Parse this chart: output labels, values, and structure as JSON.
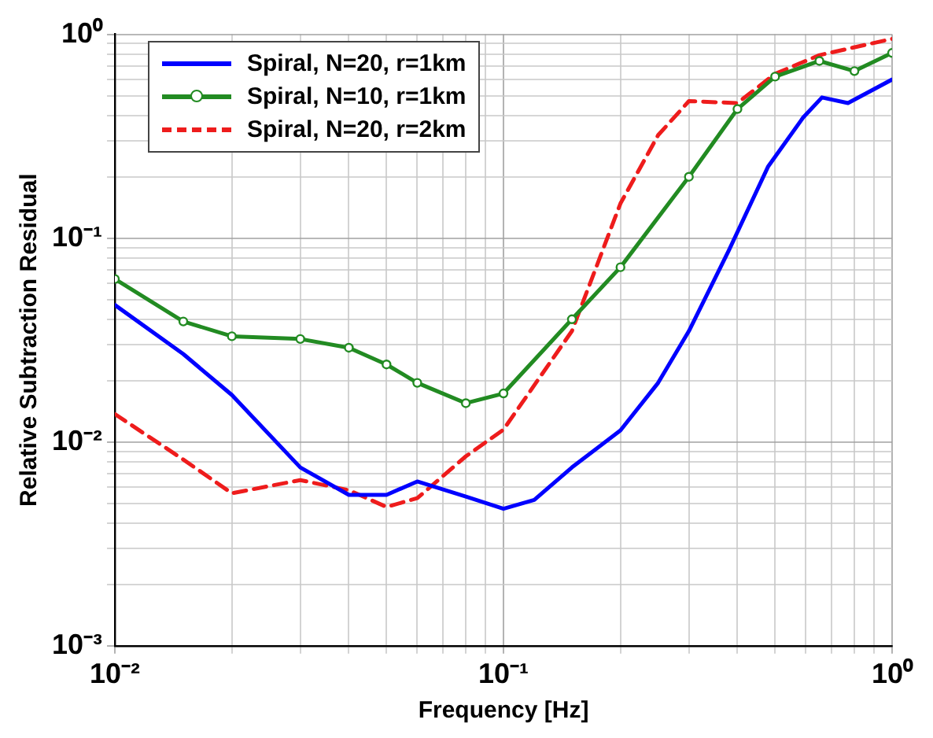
{
  "chart_data": {
    "type": "line",
    "xlabel": "Frequency [Hz]",
    "ylabel": "Relative Subtraction Residual",
    "log": "xy",
    "grid": true,
    "legend": "top left",
    "xlim": [
      0.01,
      1
    ],
    "ylim": [
      0.001,
      1
    ],
    "xticks": [
      {
        "value": 0.01,
        "label": "10⁻²"
      },
      {
        "value": 0.02,
        "label": null
      },
      {
        "value": 0.03,
        "label": null
      },
      {
        "value": 0.04,
        "label": null
      },
      {
        "value": 0.05,
        "label": null
      },
      {
        "value": 0.06,
        "label": null
      },
      {
        "value": 0.07,
        "label": null
      },
      {
        "value": 0.08,
        "label": null
      },
      {
        "value": 0.09,
        "label": null
      },
      {
        "value": 0.1,
        "label": "10⁻¹"
      },
      {
        "value": 0.2,
        "label": null
      },
      {
        "value": 0.3,
        "label": null
      },
      {
        "value": 0.4,
        "label": null
      },
      {
        "value": 0.5,
        "label": null
      },
      {
        "value": 0.6,
        "label": null
      },
      {
        "value": 0.7,
        "label": null
      },
      {
        "value": 0.8,
        "label": null
      },
      {
        "value": 0.9,
        "label": null
      },
      {
        "value": 1,
        "label": "10⁰"
      }
    ],
    "yticks": [
      {
        "value": 0.001,
        "label": "10⁻³"
      },
      {
        "value": 0.002,
        "label": null
      },
      {
        "value": 0.003,
        "label": null
      },
      {
        "value": 0.004,
        "label": null
      },
      {
        "value": 0.005,
        "label": null
      },
      {
        "value": 0.006,
        "label": null
      },
      {
        "value": 0.007,
        "label": null
      },
      {
        "value": 0.008,
        "label": null
      },
      {
        "value": 0.009,
        "label": null
      },
      {
        "value": 0.01,
        "label": "10⁻²"
      },
      {
        "value": 0.02,
        "label": null
      },
      {
        "value": 0.03,
        "label": null
      },
      {
        "value": 0.04,
        "label": null
      },
      {
        "value": 0.05,
        "label": null
      },
      {
        "value": 0.06,
        "label": null
      },
      {
        "value": 0.07,
        "label": null
      },
      {
        "value": 0.08,
        "label": null
      },
      {
        "value": 0.09,
        "label": null
      },
      {
        "value": 0.1,
        "label": "10⁻¹"
      },
      {
        "value": 0.2,
        "label": null
      },
      {
        "value": 0.3,
        "label": null
      },
      {
        "value": 0.4,
        "label": null
      },
      {
        "value": 0.5,
        "label": null
      },
      {
        "value": 0.6,
        "label": null
      },
      {
        "value": 0.7,
        "label": null
      },
      {
        "value": 0.8,
        "label": null
      },
      {
        "value": 0.9,
        "label": null
      },
      {
        "value": 1,
        "label": "10⁰"
      }
    ],
    "series": [
      {
        "name": "Spiral, N=20, r=1km",
        "color": "#0000ff",
        "line_style": "solid",
        "marker": "none",
        "x": [
          0.01,
          0.015,
          0.02,
          0.03,
          0.04,
          0.05,
          0.06,
          0.08,
          0.1,
          0.12,
          0.15,
          0.2,
          0.25,
          0.3,
          0.38,
          0.48,
          0.59,
          0.66,
          0.77,
          1
        ],
        "values": [
          0.047,
          0.027,
          0.017,
          0.0075,
          0.0055,
          0.0055,
          0.0064,
          0.0054,
          0.0047,
          0.0052,
          0.0075,
          0.0114,
          0.0195,
          0.035,
          0.087,
          0.225,
          0.39,
          0.49,
          0.46,
          0.6
        ]
      },
      {
        "name": "Spiral, N=10, r=1km",
        "color": "#228b22",
        "line_style": "solid",
        "marker": "circle",
        "x": [
          0.01,
          0.015,
          0.02,
          0.03,
          0.04,
          0.05,
          0.06,
          0.08,
          0.1,
          0.15,
          0.2,
          0.3,
          0.4,
          0.5,
          0.65,
          0.8,
          1
        ],
        "values": [
          0.063,
          0.039,
          0.033,
          0.032,
          0.029,
          0.024,
          0.0195,
          0.0155,
          0.0173,
          0.04,
          0.072,
          0.2,
          0.43,
          0.62,
          0.74,
          0.66,
          0.81
        ]
      },
      {
        "name": "Spiral, N=20, r=2km",
        "color": "#ee1c1c",
        "line_style": "dashed",
        "marker": "none",
        "x": [
          0.01,
          0.015,
          0.02,
          0.03,
          0.04,
          0.05,
          0.06,
          0.08,
          0.1,
          0.15,
          0.2,
          0.25,
          0.3,
          0.4,
          0.5,
          0.65,
          1
        ],
        "values": [
          0.0137,
          0.0082,
          0.0056,
          0.0065,
          0.0058,
          0.0048,
          0.0053,
          0.0085,
          0.0115,
          0.035,
          0.148,
          0.32,
          0.47,
          0.46,
          0.64,
          0.79,
          0.95
        ]
      }
    ]
  }
}
